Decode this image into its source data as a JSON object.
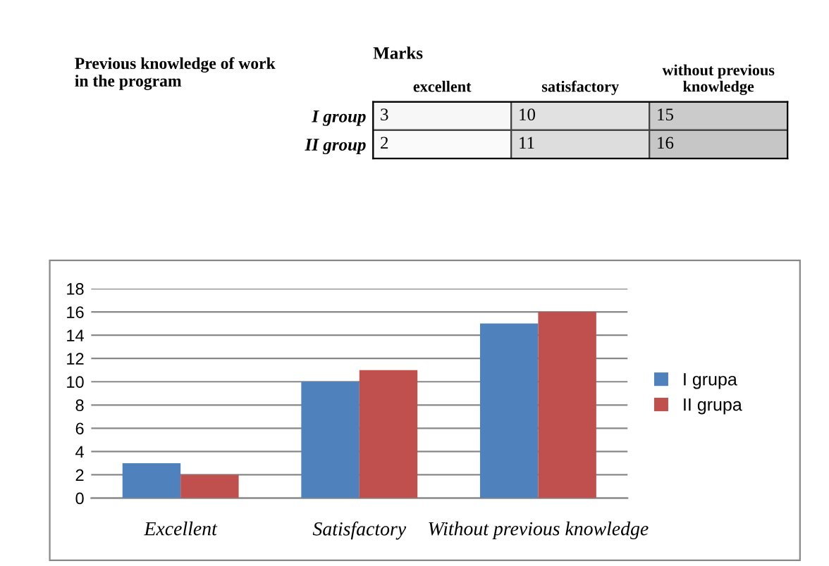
{
  "chart_data": [
    {
      "type": "heatmap",
      "title": "Marks",
      "categories": [
        "excellent",
        "satisfactory",
        "without previous knowledge"
      ],
      "y_categories": [
        "I group",
        "II group"
      ],
      "cells": [
        [
          3,
          10,
          15
        ],
        [
          2,
          11,
          16
        ]
      ],
      "data_labels": true,
      "annotations": [
        "Previous knowledge of work in the program"
      ]
    },
    {
      "type": "bar",
      "categories": [
        "Excellent",
        "Satisfactory",
        "Without previous knowledge"
      ],
      "series": [
        {
          "name": "I grupa",
          "color": "#4f81bd",
          "values": [
            3,
            10,
            15
          ]
        },
        {
          "name": "II grupa",
          "color": "#c0504d",
          "values": [
            2,
            11,
            16
          ]
        }
      ],
      "ylim": [
        0,
        18
      ],
      "yticks": [
        0,
        2,
        4,
        6,
        8,
        10,
        12,
        14,
        16,
        18
      ],
      "grid": "y",
      "legend": "right"
    }
  ]
}
